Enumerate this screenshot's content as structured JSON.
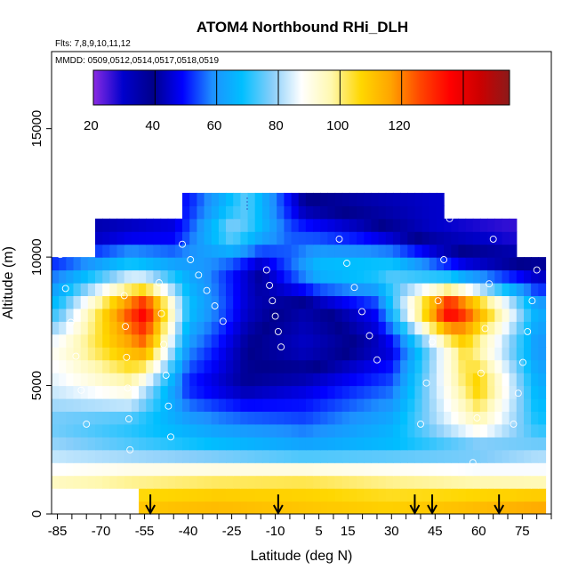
{
  "chart_data": {
    "type": "heatmap",
    "title": "ATOM4 Northbound RHi_DLH",
    "subtitle_flights": "Flts: 7,8,9,10,11,12",
    "subtitle_dates": "MMDD: 0509,0512,0514,0517,0518,0519",
    "xlabel": "Latitude (deg N)",
    "ylabel": "Altitude (m)",
    "xlim": [
      -87,
      85
    ],
    "ylim": [
      0,
      18000
    ],
    "x_tick_labels": [
      "-85",
      "-70",
      "-55",
      "-40",
      "-25",
      "-10",
      "5",
      "15",
      "30",
      "45",
      "60",
      "75"
    ],
    "y_tick_labels": [
      "0",
      "5000",
      "10000",
      "15000"
    ],
    "colorbar": {
      "ticks": [
        "20",
        "40",
        "60",
        "80",
        "100",
        "120"
      ],
      "range": [
        0,
        135
      ],
      "stops": [
        "#8a2be2",
        "#0000cd",
        "#00008b",
        "#0000ff",
        "#1e90ff",
        "#00bfff",
        "#87cefa",
        "#ffffff",
        "#fff8b0",
        "#ffd700",
        "#ffa500",
        "#ff4500",
        "#ff0000",
        "#cc0000",
        "#8b1a1a"
      ]
    },
    "arrows_latitude": [
      -53,
      -9,
      38,
      44,
      67
    ],
    "grid": false,
    "legend": "none",
    "approximate_field": [
      {
        "alt": 500,
        "values": [
          [
            -55,
            90
          ],
          [
            -30,
            92
          ],
          [
            0,
            90
          ],
          [
            30,
            88
          ],
          [
            60,
            92
          ],
          [
            80,
            95
          ]
        ]
      },
      {
        "alt": 1500,
        "values": [
          [
            -85,
            70
          ],
          [
            -60,
            75
          ],
          [
            -30,
            78
          ],
          [
            0,
            80
          ],
          [
            30,
            76
          ],
          [
            60,
            72
          ],
          [
            80,
            70
          ]
        ]
      },
      {
        "alt": 2500,
        "values": [
          [
            -85,
            60
          ],
          [
            -60,
            55
          ],
          [
            -30,
            50
          ],
          [
            0,
            45
          ],
          [
            30,
            48
          ],
          [
            60,
            52
          ],
          [
            80,
            58
          ]
        ]
      },
      {
        "alt": 3500,
        "values": [
          [
            -85,
            55
          ],
          [
            -60,
            50
          ],
          [
            -30,
            40
          ],
          [
            0,
            35
          ],
          [
            30,
            45
          ],
          [
            60,
            75
          ],
          [
            80,
            50
          ]
        ]
      },
      {
        "alt": 5000,
        "values": [
          [
            -85,
            65
          ],
          [
            -60,
            75
          ],
          [
            -40,
            30
          ],
          [
            -20,
            20
          ],
          [
            0,
            25
          ],
          [
            30,
            35
          ],
          [
            60,
            90
          ],
          [
            80,
            45
          ]
        ]
      },
      {
        "alt": 6500,
        "values": [
          [
            -85,
            70
          ],
          [
            -55,
            100
          ],
          [
            -40,
            40
          ],
          [
            -20,
            20
          ],
          [
            0,
            10
          ],
          [
            30,
            25
          ],
          [
            55,
            85
          ],
          [
            80,
            40
          ]
        ]
      },
      {
        "alt": 8000,
        "values": [
          [
            -85,
            50
          ],
          [
            -55,
            120
          ],
          [
            -40,
            50
          ],
          [
            -20,
            25
          ],
          [
            0,
            15
          ],
          [
            25,
            30
          ],
          [
            50,
            125
          ],
          [
            80,
            45
          ]
        ]
      },
      {
        "alt": 9500,
        "values": [
          [
            -85,
            35
          ],
          [
            -60,
            55
          ],
          [
            -35,
            40
          ],
          [
            -15,
            20
          ],
          [
            5,
            50
          ],
          [
            30,
            55
          ],
          [
            55,
            30
          ],
          [
            80,
            20
          ]
        ]
      },
      {
        "alt": 11000,
        "values": [
          [
            -70,
            20
          ],
          [
            -45,
            25
          ],
          [
            -25,
            60
          ],
          [
            -5,
            35
          ],
          [
            20,
            25
          ],
          [
            45,
            10
          ],
          [
            70,
            5
          ]
        ]
      },
      {
        "alt": 12000,
        "values": [
          [
            -40,
            30
          ],
          [
            -20,
            55
          ],
          [
            0,
            20
          ],
          [
            20,
            15
          ],
          [
            45,
            10
          ]
        ]
      }
    ]
  }
}
